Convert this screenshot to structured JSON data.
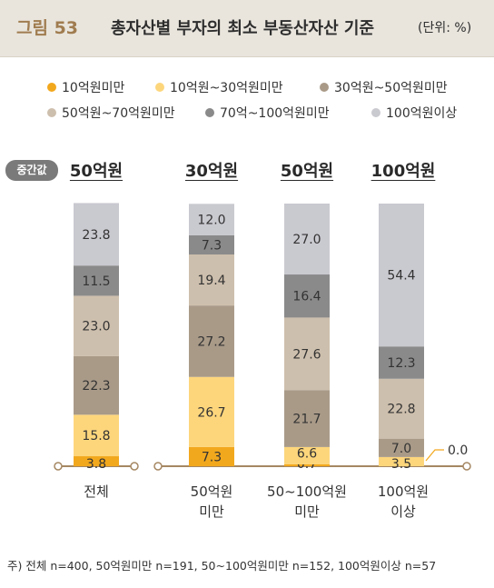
{
  "figure": {
    "label": "그림 53",
    "title": "총자산별 부자의 최소 부동산자산 기준",
    "unit": "(단위: %)"
  },
  "median": {
    "badge": "중간값",
    "values": [
      "50억원",
      "30억원",
      "50억원",
      "100억원"
    ]
  },
  "note": "주) 전체 n=400, 50억원미만 n=191, 50~100억원미만 n=152, 100억원이상 n=57",
  "colors": {
    "s1": "#f2a81d",
    "s2": "#fdd67c",
    "s3": "#a99a88",
    "s4": "#cdbfad",
    "s5": "#8a8a8a",
    "s6": "#c9c9d0",
    "axis": "#a58762"
  },
  "chart_data": {
    "type": "bar",
    "stacked": true,
    "categories": [
      "전체",
      "50억원\n미만",
      "50~100억원\n미만",
      "100억원\n이상"
    ],
    "series": [
      {
        "name": "10억원미만",
        "values": [
          3.8,
          7.3,
          0.7,
          0.0
        ]
      },
      {
        "name": "10억원~30억원미만",
        "values": [
          15.8,
          26.7,
          6.6,
          3.5
        ]
      },
      {
        "name": "30억원~50억원미만",
        "values": [
          22.3,
          27.2,
          21.7,
          7.0
        ]
      },
      {
        "name": "50억원~70억원미만",
        "values": [
          23.0,
          19.4,
          27.6,
          22.8
        ]
      },
      {
        "name": "70억~100억원미만",
        "values": [
          11.5,
          7.3,
          16.4,
          12.3
        ]
      },
      {
        "name": "100억원이상",
        "values": [
          23.8,
          12.0,
          27.0,
          54.4
        ]
      }
    ],
    "ylim": [
      0,
      100
    ]
  }
}
